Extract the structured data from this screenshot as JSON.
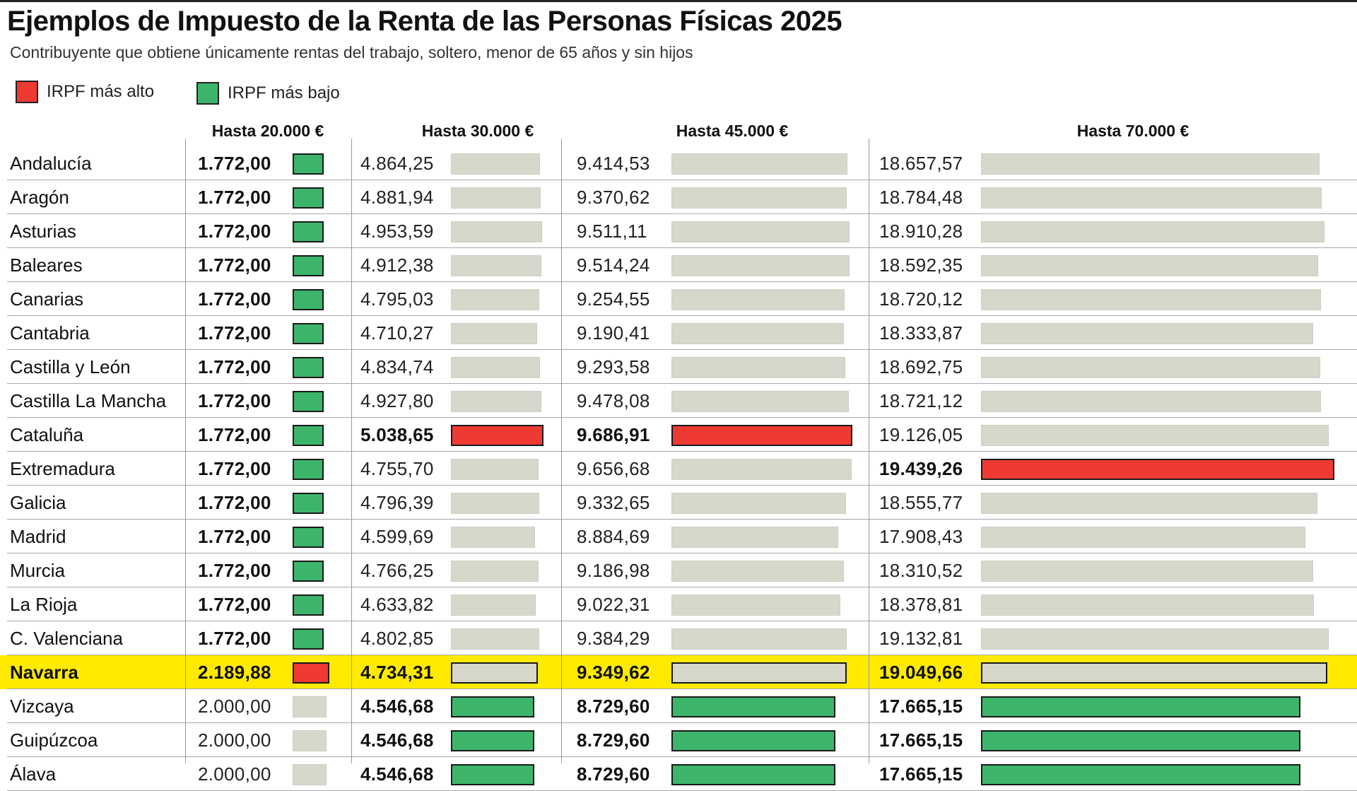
{
  "header": {
    "title": "Ejemplos de Impuesto de la Renta de las Personas Físicas 2025",
    "subtitle": "Contribuyente que obtiene únicamente rentas del trabajo, soltero, menor de 65 años y sin hijos"
  },
  "legend": [
    {
      "label": "IRPF más alto",
      "color": "#ee3a32"
    },
    {
      "label": "IRPF más bajo",
      "color": "#3cb56b"
    }
  ],
  "colors": {
    "high": "#ee3a32",
    "low": "#3cb56b",
    "neutral": "#d8d7cc",
    "highlight_row": "#ffea00"
  },
  "chart_data": {
    "type": "table",
    "title": "Ejemplos de Impuesto de la Renta de las Personas Físicas 2025",
    "subtitle": "Contribuyente que obtiene únicamente rentas del trabajo, soltero, menor de 65 años y sin hijos",
    "columns": [
      "Hasta 20.000 €",
      "Hasta 30.000 €",
      "Hasta 45.000 €",
      "Hasta 70.000 €"
    ],
    "legend_position": "top-left",
    "highlight_row": "Navarra",
    "rows": [
      {
        "region": "Andalucía",
        "values": [
          1772.0,
          4864.25,
          9414.53,
          18657.57
        ],
        "labels": [
          "1.772,00",
          "4.864,25",
          "9.414,53",
          "18.657,57"
        ],
        "status": [
          "low",
          "neutral",
          "neutral",
          "neutral"
        ]
      },
      {
        "region": "Aragón",
        "values": [
          1772.0,
          4881.94,
          9370.62,
          18784.48
        ],
        "labels": [
          "1.772,00",
          "4.881,94",
          "9.370,62",
          "18.784,48"
        ],
        "status": [
          "low",
          "neutral",
          "neutral",
          "neutral"
        ]
      },
      {
        "region": "Asturias",
        "values": [
          1772.0,
          4953.59,
          9511.11,
          18910.28
        ],
        "labels": [
          "1.772,00",
          "4.953,59",
          "9.511,11",
          "18.910,28"
        ],
        "status": [
          "low",
          "neutral",
          "neutral",
          "neutral"
        ]
      },
      {
        "region": "Baleares",
        "values": [
          1772.0,
          4912.38,
          9514.24,
          18592.35
        ],
        "labels": [
          "1.772,00",
          "4.912,38",
          "9.514,24",
          "18.592,35"
        ],
        "status": [
          "low",
          "neutral",
          "neutral",
          "neutral"
        ]
      },
      {
        "region": "Canarias",
        "values": [
          1772.0,
          4795.03,
          9254.55,
          18720.12
        ],
        "labels": [
          "1.772,00",
          "4.795,03",
          "9.254,55",
          "18.720,12"
        ],
        "status": [
          "low",
          "neutral",
          "neutral",
          "neutral"
        ]
      },
      {
        "region": "Cantabria",
        "values": [
          1772.0,
          4710.27,
          9190.41,
          18333.87
        ],
        "labels": [
          "1.772,00",
          "4.710,27",
          "9.190,41",
          "18.333,87"
        ],
        "status": [
          "low",
          "neutral",
          "neutral",
          "neutral"
        ]
      },
      {
        "region": "Castilla y León",
        "values": [
          1772.0,
          4834.74,
          9293.58,
          18692.75
        ],
        "labels": [
          "1.772,00",
          "4.834,74",
          "9.293,58",
          "18.692,75"
        ],
        "status": [
          "low",
          "neutral",
          "neutral",
          "neutral"
        ]
      },
      {
        "region": "Castilla La Mancha",
        "values": [
          1772.0,
          4927.8,
          9478.08,
          18721.12
        ],
        "labels": [
          "1.772,00",
          "4.927,80",
          "9.478,08",
          "18.721,12"
        ],
        "status": [
          "low",
          "neutral",
          "neutral",
          "neutral"
        ]
      },
      {
        "region": "Cataluña",
        "values": [
          1772.0,
          5038.65,
          9686.91,
          19126.05
        ],
        "labels": [
          "1.772,00",
          "5.038,65",
          "9.686,91",
          "19.126,05"
        ],
        "status": [
          "low",
          "high",
          "high",
          "neutral"
        ]
      },
      {
        "region": "Extremadura",
        "values": [
          1772.0,
          4755.7,
          9656.68,
          19439.26
        ],
        "labels": [
          "1.772,00",
          "4.755,70",
          "9.656,68",
          "19.439,26"
        ],
        "status": [
          "low",
          "neutral",
          "neutral",
          "high"
        ]
      },
      {
        "region": "Galicia",
        "values": [
          1772.0,
          4796.39,
          9332.65,
          18555.77
        ],
        "labels": [
          "1.772,00",
          "4.796,39",
          "9.332,65",
          "18.555,77"
        ],
        "status": [
          "low",
          "neutral",
          "neutral",
          "neutral"
        ]
      },
      {
        "region": "Madrid",
        "values": [
          1772.0,
          4599.69,
          8884.69,
          17908.43
        ],
        "labels": [
          "1.772,00",
          "4.599,69",
          "8.884,69",
          "17.908,43"
        ],
        "status": [
          "low",
          "neutral",
          "neutral",
          "neutral"
        ]
      },
      {
        "region": "Murcia",
        "values": [
          1772.0,
          4766.25,
          9186.98,
          18310.52
        ],
        "labels": [
          "1.772,00",
          "4.766,25",
          "9.186,98",
          "18.310,52"
        ],
        "status": [
          "low",
          "neutral",
          "neutral",
          "neutral"
        ]
      },
      {
        "region": "La Rioja",
        "values": [
          1772.0,
          4633.82,
          9022.31,
          18378.81
        ],
        "labels": [
          "1.772,00",
          "4.633,82",
          "9.022,31",
          "18.378,81"
        ],
        "status": [
          "low",
          "neutral",
          "neutral",
          "neutral"
        ]
      },
      {
        "region": "C. Valenciana",
        "values": [
          1772.0,
          4802.85,
          9384.29,
          19132.81
        ],
        "labels": [
          "1.772,00",
          "4.802,85",
          "9.384,29",
          "19.132,81"
        ],
        "status": [
          "low",
          "neutral",
          "neutral",
          "neutral"
        ]
      },
      {
        "region": "Navarra",
        "values": [
          2189.88,
          4734.31,
          9349.62,
          19049.66
        ],
        "labels": [
          "2.189,88",
          "4.734,31",
          "9.349,62",
          "19.049,66"
        ],
        "status": [
          "high",
          "neutral",
          "neutral",
          "neutral"
        ]
      },
      {
        "region": "Vizcaya",
        "values": [
          2000.0,
          4546.68,
          8729.6,
          17665.15
        ],
        "labels": [
          "2.000,00",
          "4.546,68",
          "8.729,60",
          "17.665,15"
        ],
        "status": [
          "neutral",
          "low",
          "low",
          "low"
        ]
      },
      {
        "region": "Guipúzcoa",
        "values": [
          2000.0,
          4546.68,
          8729.6,
          17665.15
        ],
        "labels": [
          "2.000,00",
          "4.546,68",
          "8.729,60",
          "17.665,15"
        ],
        "status": [
          "neutral",
          "low",
          "low",
          "low"
        ]
      },
      {
        "region": "Álava",
        "values": [
          2000.0,
          4546.68,
          8729.6,
          17665.15
        ],
        "labels": [
          "2.000,00",
          "4.546,68",
          "8.729,60",
          "17.665,15"
        ],
        "status": [
          "neutral",
          "low",
          "low",
          "low"
        ]
      }
    ]
  }
}
